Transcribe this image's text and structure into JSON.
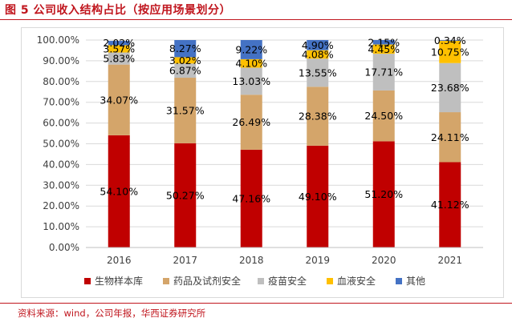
{
  "figure": {
    "title": "图 5   公司收入结构占比（按应用场景划分）",
    "source": "资料来源：wind，公司年报，华西证券研究所"
  },
  "chart_data": {
    "type": "bar",
    "stacked": true,
    "categories": [
      "2016",
      "2017",
      "2018",
      "2019",
      "2020",
      "2021"
    ],
    "ylim": [
      0,
      100
    ],
    "yticks": [
      "0.00%",
      "10.00%",
      "20.00%",
      "30.00%",
      "40.00%",
      "50.00%",
      "60.00%",
      "70.00%",
      "80.00%",
      "90.00%",
      "100.00%"
    ],
    "legend_position": "bottom",
    "grid": true,
    "series": [
      {
        "name": "生物样本库",
        "color": "#c00000",
        "values": [
          54.1,
          50.27,
          47.16,
          49.1,
          51.2,
          41.12
        ],
        "labels": [
          "54.10%",
          "50.27%",
          "47.16%",
          "49.10%",
          "51.20%",
          "41.12%"
        ]
      },
      {
        "name": "药品及试剂安全",
        "color": "#d4a56a",
        "values": [
          34.07,
          31.57,
          26.49,
          28.38,
          24.5,
          24.11
        ],
        "labels": [
          "34.07%",
          "31.57%",
          "26.49%",
          "28.38%",
          "24.50%",
          "24.11%"
        ]
      },
      {
        "name": "疫苗安全",
        "color": "#bfbfbf",
        "values": [
          5.83,
          6.87,
          13.03,
          13.55,
          17.71,
          23.68
        ],
        "labels": [
          "5.83%",
          "6.87%",
          "13.03%",
          "13.55%",
          "17.71%",
          "23.68%"
        ]
      },
      {
        "name": "血液安全",
        "color": "#ffc000",
        "values": [
          3.57,
          3.02,
          4.1,
          4.08,
          4.45,
          10.75
        ],
        "labels": [
          "3.57%",
          "3.02%",
          "4.10%",
          "4.08%",
          "4.45%",
          "10.75%"
        ]
      },
      {
        "name": "其他",
        "color": "#4472c4",
        "values": [
          2.02,
          8.27,
          9.22,
          4.9,
          2.15,
          0.34
        ],
        "labels": [
          "2.02%",
          "8.27%",
          "9.22%",
          "4.90%",
          "2.15%",
          "0.34%"
        ]
      }
    ]
  }
}
